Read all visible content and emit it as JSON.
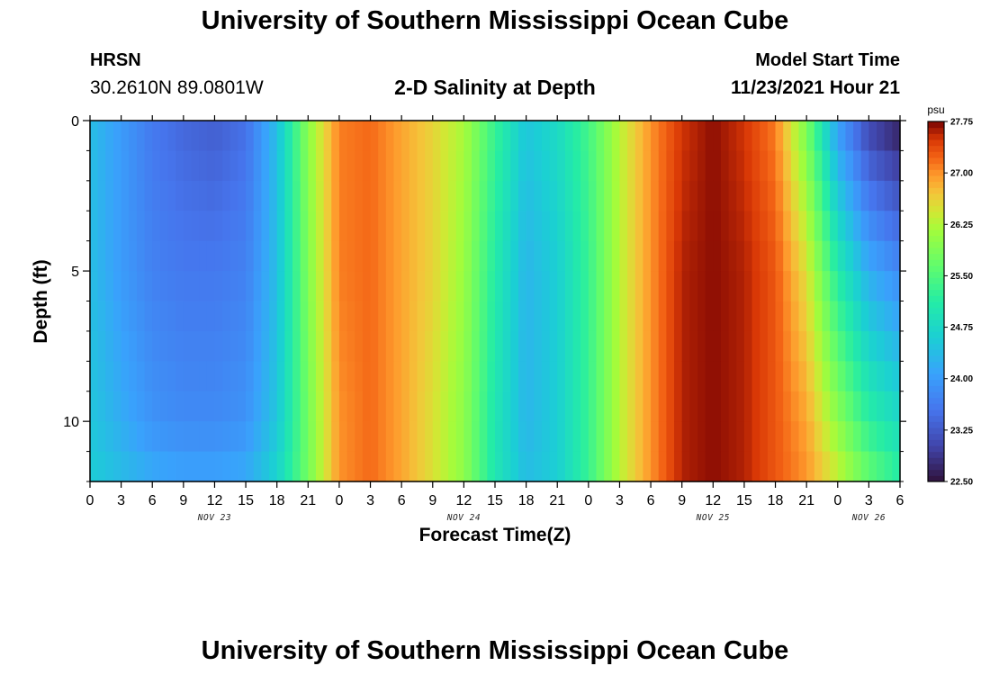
{
  "header": {
    "title": "University of Southern Mississippi Ocean Cube",
    "station": "HRSN",
    "coordinates": "30.2610N  89.0801W",
    "subtitle": "2-D Salinity at Depth",
    "model_label": "Model Start Time",
    "model_time": "11/23/2021 Hour 21"
  },
  "footer": {
    "title": "University of Southern Mississippi Ocean Cube"
  },
  "chart_data": {
    "type": "heatmap",
    "title": "2-D Salinity at Depth",
    "xlabel": "Forecast Time(Z)",
    "ylabel": "Depth (ft)",
    "x_unit": "hours since Nov 23 00Z",
    "xlim": [
      0,
      78
    ],
    "ylim": [
      0,
      12
    ],
    "y_inverted": true,
    "x_ticks": [
      {
        "hour": 0,
        "label": "0"
      },
      {
        "hour": 3,
        "label": "3"
      },
      {
        "hour": 6,
        "label": "6"
      },
      {
        "hour": 9,
        "label": "9"
      },
      {
        "hour": 12,
        "label": "12"
      },
      {
        "hour": 15,
        "label": "15"
      },
      {
        "hour": 18,
        "label": "18"
      },
      {
        "hour": 21,
        "label": "21"
      },
      {
        "hour": 24,
        "label": "0"
      },
      {
        "hour": 27,
        "label": "3"
      },
      {
        "hour": 30,
        "label": "6"
      },
      {
        "hour": 33,
        "label": "9"
      },
      {
        "hour": 36,
        "label": "12"
      },
      {
        "hour": 39,
        "label": "15"
      },
      {
        "hour": 42,
        "label": "18"
      },
      {
        "hour": 45,
        "label": "21"
      },
      {
        "hour": 48,
        "label": "0"
      },
      {
        "hour": 51,
        "label": "3"
      },
      {
        "hour": 54,
        "label": "6"
      },
      {
        "hour": 57,
        "label": "9"
      },
      {
        "hour": 60,
        "label": "12"
      },
      {
        "hour": 63,
        "label": "15"
      },
      {
        "hour": 66,
        "label": "18"
      },
      {
        "hour": 69,
        "label": "21"
      },
      {
        "hour": 72,
        "label": "0"
      },
      {
        "hour": 75,
        "label": "3"
      },
      {
        "hour": 78,
        "label": "6"
      }
    ],
    "date_labels": [
      {
        "hour": 12,
        "label": "NOV 23"
      },
      {
        "hour": 36,
        "label": "NOV 24"
      },
      {
        "hour": 60,
        "label": "NOV 25"
      },
      {
        "hour": 75,
        "label": "NOV 26"
      }
    ],
    "y_ticks": [
      0,
      5,
      10
    ],
    "y_minor_ticks": [
      1,
      2,
      3,
      4,
      6,
      7,
      8,
      9,
      11,
      12
    ],
    "time_steps": [
      0,
      3,
      6,
      9,
      12,
      15,
      18,
      21,
      24,
      27,
      30,
      33,
      36,
      39,
      42,
      45,
      48,
      51,
      54,
      57,
      60,
      63,
      66,
      69,
      72,
      75,
      78
    ],
    "depth_levels": [
      0,
      5,
      10,
      12
    ],
    "salinity_psu": [
      [
        24.4,
        24.4,
        24.5,
        24.6
      ],
      [
        24.0,
        24.0,
        24.2,
        24.4
      ],
      [
        23.6,
        23.7,
        23.9,
        24.2
      ],
      [
        23.4,
        23.6,
        23.8,
        24.1
      ],
      [
        23.3,
        23.6,
        23.8,
        24.1
      ],
      [
        23.5,
        23.7,
        23.9,
        24.2
      ],
      [
        24.4,
        24.4,
        24.5,
        24.7
      ],
      [
        26.0,
        25.9,
        25.8,
        25.8
      ],
      [
        27.1,
        27.1,
        27.0,
        27.0
      ],
      [
        27.2,
        27.2,
        27.2,
        27.2
      ],
      [
        26.9,
        26.9,
        26.9,
        26.9
      ],
      [
        26.6,
        26.6,
        26.5,
        26.5
      ],
      [
        26.2,
        26.1,
        26.0,
        26.0
      ],
      [
        25.3,
        25.1,
        25.0,
        25.0
      ],
      [
        24.5,
        24.3,
        24.3,
        24.4
      ],
      [
        24.8,
        24.6,
        24.6,
        24.6
      ],
      [
        25.4,
        25.3,
        25.3,
        25.3
      ],
      [
        26.3,
        26.3,
        26.3,
        26.3
      ],
      [
        27.0,
        27.0,
        27.0,
        27.0
      ],
      [
        27.5,
        27.6,
        27.6,
        27.6
      ],
      [
        27.7,
        27.7,
        27.7,
        27.7
      ],
      [
        27.5,
        27.6,
        27.6,
        27.6
      ],
      [
        27.1,
        27.3,
        27.3,
        27.3
      ],
      [
        25.8,
        26.5,
        26.9,
        27.0
      ],
      [
        24.0,
        25.1,
        26.0,
        26.4
      ],
      [
        23.0,
        24.2,
        25.2,
        25.7
      ],
      [
        22.6,
        23.8,
        24.8,
        25.2
      ]
    ],
    "colorbar": {
      "unit": "psu",
      "range": [
        22.5,
        27.75
      ],
      "tick_values": [
        22.5,
        23.25,
        24.0,
        24.75,
        25.5,
        26.25,
        27.0,
        27.75
      ],
      "tick_labels": [
        "22.50",
        "23.25",
        "24.00",
        "24.75",
        "25.50",
        "26.25",
        "27.00",
        "27.75"
      ],
      "colormap": "turbo"
    }
  }
}
